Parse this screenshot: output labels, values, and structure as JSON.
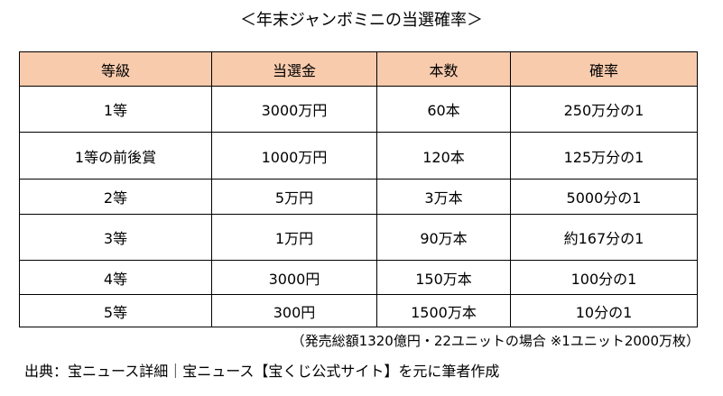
{
  "title": "＜年末ジャンボミニの当選確率＞",
  "table": {
    "headers": [
      "等級",
      "当選金",
      "本数",
      "確率"
    ],
    "rows": [
      [
        "1等",
        "3000万円",
        "60本",
        "250万分の1"
      ],
      [
        "1等の前後賞",
        "1000万円",
        "120本",
        "125万分の1"
      ],
      [
        "2等",
        "5万円",
        "3万本",
        "5000分の1"
      ],
      [
        "3等",
        "1万円",
        "90万本",
        "約167分の1"
      ],
      [
        "4等",
        "3000円",
        "150万本",
        "100分の1"
      ],
      [
        "5等",
        "300円",
        "1500万本",
        "10分の1"
      ]
    ],
    "header_bg": "#f8cbad"
  },
  "note": "（発売総額1320億円・22ユニットの場合 ※1ユニット2000万枚）",
  "source": "出典：宝ニュース詳細｜宝ニュース【宝くじ公式サイト】を元に筆者作成"
}
